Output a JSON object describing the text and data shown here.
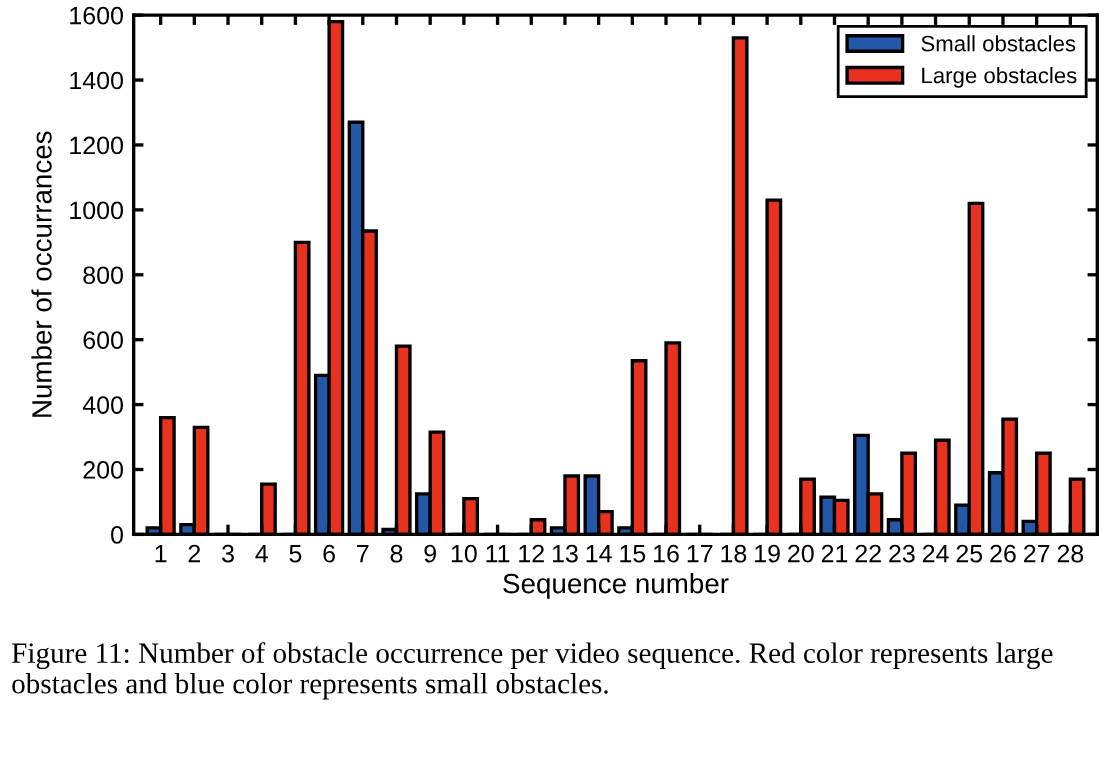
{
  "chart_data": {
    "type": "bar",
    "xlabel": "Sequence number",
    "ylabel": "Number of occurrances",
    "categories": [
      "1",
      "2",
      "3",
      "4",
      "5",
      "6",
      "7",
      "8",
      "9",
      "10",
      "11",
      "12",
      "13",
      "14",
      "15",
      "16",
      "17",
      "18",
      "19",
      "20",
      "21",
      "22",
      "23",
      "24",
      "25",
      "26",
      "27",
      "28"
    ],
    "series": [
      {
        "name": "Small obstacles",
        "color": "#2357a8",
        "values": [
          20,
          30,
          0,
          0,
          0,
          490,
          1270,
          15,
          125,
          0,
          0,
          0,
          20,
          180,
          20,
          0,
          0,
          0,
          0,
          0,
          115,
          305,
          45,
          0,
          90,
          190,
          40,
          0
        ]
      },
      {
        "name": "Large obstacles",
        "color": "#e8321e",
        "values": [
          360,
          330,
          0,
          155,
          900,
          1580,
          935,
          580,
          315,
          110,
          0,
          45,
          180,
          70,
          535,
          590,
          0,
          1530,
          1030,
          170,
          105,
          125,
          250,
          290,
          1020,
          355,
          250,
          170
        ]
      }
    ],
    "ylim": [
      0,
      1600
    ],
    "yticks": [
      0,
      200,
      400,
      600,
      800,
      1000,
      1200,
      1400,
      1600
    ],
    "grid": false,
    "legend": "top right",
    "annotations": [
      "Figure 11: Number of obstacle occurrence per video sequence. Red color represents large obstacles and blue color represents small obstacles."
    ]
  }
}
